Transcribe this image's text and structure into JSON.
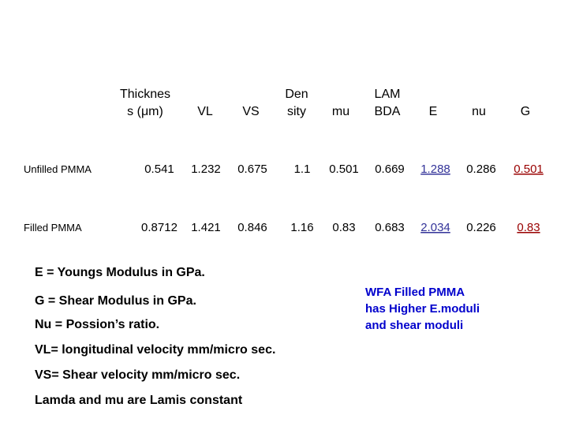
{
  "table": {
    "header": [
      [
        "Thicknes",
        "s (μm)"
      ],
      [
        "VL"
      ],
      [
        "VS"
      ],
      [
        "Den",
        "sity"
      ],
      [
        "mu"
      ],
      [
        "LAM",
        "BDA"
      ],
      [
        "E"
      ],
      [
        "nu"
      ],
      [
        "G"
      ]
    ],
    "rows": [
      {
        "label": "Unfilled PMMA",
        "values": [
          "0.541",
          "1.232",
          "0.675",
          "1.1",
          "0.501",
          "0.669",
          "1.288",
          "0.286",
          "0.501"
        ]
      },
      {
        "label": "Filled PMMA",
        "values": [
          "0.8712",
          "1.421",
          "0.846",
          "1.16",
          "0.83",
          "0.683",
          "2.034",
          "0.226",
          "0.83"
        ]
      }
    ]
  },
  "notes": [
    "E = Youngs Modulus in GPa.",
    "G = Shear Modulus in GPa.",
    "Nu = Possion’s ratio.",
    "VL= longitudinal velocity mm/micro sec.",
    "VS= Shear  velocity mm/micro sec.",
    "Lamda and mu are Lamis constant"
  ],
  "callout": [
    "WFA Filled PMMA",
    "has Higher E.moduli",
    "and shear moduli"
  ]
}
